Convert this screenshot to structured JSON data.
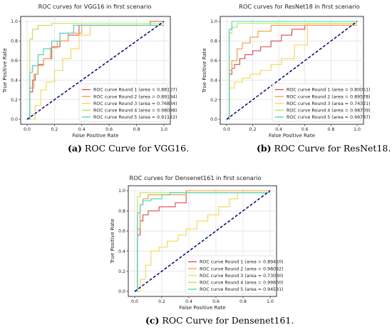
{
  "chart_data": [
    {
      "type": "line",
      "title": "ROC curves for VGG16 in first scenario",
      "xlabel": "False Positive Rate",
      "ylabel": "True Positive Rate",
      "xlim": [
        0.0,
        1.0
      ],
      "ylim": [
        0.0,
        1.0
      ],
      "xticks": [
        "0.0",
        "0.2",
        "0.4",
        "0.6",
        "0.8",
        "1.0"
      ],
      "yticks": [
        "0.0",
        "0.2",
        "0.4",
        "0.6",
        "0.8",
        "1.0"
      ],
      "grid": true,
      "legend_position": "lower-right",
      "diagonal": {
        "x": [
          0,
          1
        ],
        "y": [
          0,
          1
        ],
        "color": "#00008b",
        "style": "dashed"
      },
      "series": [
        {
          "name": "ROC curve Round 1 (area = 0.88107)",
          "color": "#e8474c",
          "x": [
            0,
            0.02,
            0.02,
            0.04,
            0.04,
            0.06,
            0.06,
            0.08,
            0.08,
            0.12,
            0.12,
            0.18,
            0.18,
            0.24,
            0.24,
            0.3,
            0.3,
            0.38,
            0.38,
            0.9,
            0.9,
            1.0
          ],
          "y": [
            0,
            0,
            0.28,
            0.28,
            0.4,
            0.4,
            0.46,
            0.46,
            0.56,
            0.56,
            0.62,
            0.62,
            0.74,
            0.74,
            0.8,
            0.8,
            0.86,
            0.86,
            0.96,
            0.96,
            1.0,
            1.0
          ]
        },
        {
          "name": "ROC curve Round 2 (area = 0.89194)",
          "color": "#f79a3a",
          "x": [
            0,
            0.02,
            0.02,
            0.05,
            0.05,
            0.08,
            0.08,
            0.12,
            0.12,
            0.17,
            0.17,
            0.22,
            0.22,
            0.3,
            0.3,
            0.4,
            0.4,
            1.0
          ],
          "y": [
            0,
            0,
            0.32,
            0.32,
            0.46,
            0.46,
            0.55,
            0.55,
            0.62,
            0.62,
            0.73,
            0.73,
            0.8,
            0.8,
            0.88,
            0.88,
            0.96,
            0.96
          ]
        },
        {
          "name": "ROC curve Round 3 (area = 0.76834)",
          "color": "#f7d84a",
          "x": [
            0,
            0.06,
            0.06,
            0.1,
            0.1,
            0.14,
            0.14,
            0.2,
            0.2,
            0.26,
            0.26,
            0.32,
            0.32,
            0.38,
            0.38,
            0.46,
            0.46,
            1.0
          ],
          "y": [
            0,
            0,
            0.14,
            0.14,
            0.3,
            0.3,
            0.38,
            0.38,
            0.5,
            0.5,
            0.62,
            0.62,
            0.72,
            0.72,
            0.86,
            0.86,
            0.96,
            0.96
          ]
        },
        {
          "name": "ROC curve Round 4 (area = 0.98098)",
          "color": "#b5e84a",
          "x": [
            0,
            0.02,
            0.02,
            0.04,
            0.04,
            0.08,
            0.08,
            0.18,
            0.18,
            1.0
          ],
          "y": [
            0,
            0,
            0.82,
            0.82,
            0.92,
            0.92,
            0.96,
            0.96,
            0.98,
            0.98
          ]
        },
        {
          "name": "ROC curve Round 5 (area = 0.91122)",
          "color": "#45d1b7",
          "x": [
            0,
            0.02,
            0.02,
            0.04,
            0.04,
            0.08,
            0.08,
            0.12,
            0.12,
            0.18,
            0.18,
            0.24,
            0.24,
            0.34,
            0.34,
            1.0
          ],
          "y": [
            0,
            0,
            0.48,
            0.48,
            0.55,
            0.55,
            0.66,
            0.66,
            0.72,
            0.72,
            0.8,
            0.8,
            0.88,
            0.88,
            0.96,
            0.96
          ]
        }
      ]
    },
    {
      "type": "line",
      "title": "ROC curves for ResNet18 in first scenario",
      "xlabel": "False Positive Rate",
      "ylabel": "True Positive Rate",
      "xlim": [
        0.0,
        1.0
      ],
      "ylim": [
        0.0,
        1.0
      ],
      "xticks": [
        "0.0",
        "0.2",
        "0.4",
        "0.6",
        "0.8",
        "1.0"
      ],
      "yticks": [
        "0.0",
        "0.2",
        "0.4",
        "0.6",
        "0.8",
        "1.0"
      ],
      "grid": true,
      "legend_position": "lower-right",
      "diagonal": {
        "x": [
          0,
          1
        ],
        "y": [
          0,
          1
        ],
        "color": "#00008b",
        "style": "dashed"
      },
      "series": [
        {
          "name": "ROC curve Round 1 (area = 0.80051)",
          "color": "#e8474c",
          "x": [
            0,
            0.02,
            0.02,
            0.04,
            0.04,
            0.06,
            0.06,
            0.1,
            0.1,
            0.14,
            0.14,
            0.2,
            0.2,
            0.26,
            0.26,
            0.34,
            0.34,
            0.42,
            0.42,
            0.5,
            0.5,
            0.6,
            0.6,
            1.0
          ],
          "y": [
            0,
            0,
            0.46,
            0.46,
            0.52,
            0.52,
            0.56,
            0.56,
            0.62,
            0.62,
            0.66,
            0.66,
            0.7,
            0.7,
            0.74,
            0.74,
            0.8,
            0.8,
            0.86,
            0.86,
            0.92,
            0.92,
            0.96,
            0.96
          ]
        },
        {
          "name": "ROC curve Round 2 (area = 0.89578)",
          "color": "#f79a3a",
          "x": [
            0,
            0.02,
            0.02,
            0.04,
            0.04,
            0.08,
            0.08,
            0.12,
            0.12,
            0.18,
            0.18,
            0.24,
            0.24,
            0.34,
            0.34,
            1.0
          ],
          "y": [
            0,
            0,
            0.5,
            0.5,
            0.6,
            0.6,
            0.72,
            0.72,
            0.78,
            0.78,
            0.84,
            0.84,
            0.9,
            0.9,
            0.96,
            0.96
          ]
        },
        {
          "name": "ROC curve Round 3 (area = 0.74321)",
          "color": "#f7d84a",
          "x": [
            0,
            0.02,
            0.02,
            0.06,
            0.06,
            0.12,
            0.12,
            0.18,
            0.18,
            0.26,
            0.26,
            0.34,
            0.34,
            0.42,
            0.42,
            0.52,
            0.52,
            0.62,
            0.62,
            1.0
          ],
          "y": [
            0,
            0,
            0.32,
            0.32,
            0.38,
            0.38,
            0.42,
            0.42,
            0.46,
            0.46,
            0.5,
            0.5,
            0.56,
            0.56,
            0.62,
            0.62,
            0.76,
            0.76,
            0.98,
            0.98
          ]
        },
        {
          "name": "ROC curve Round 4 (area = 0.98709)",
          "color": "#b5e84a",
          "x": [
            0,
            0.02,
            0.02,
            0.04,
            0.04,
            0.08,
            0.08,
            1.0
          ],
          "y": [
            0,
            0,
            0.88,
            0.88,
            0.94,
            0.94,
            0.98,
            0.98
          ]
        },
        {
          "name": "ROC curve Round 5 (area = 0.99787)",
          "color": "#45d1b7",
          "x": [
            0,
            0.02,
            0.02,
            0.04,
            0.04,
            1.0
          ],
          "y": [
            0,
            0,
            0.92,
            0.92,
            1.0,
            1.0
          ]
        }
      ]
    },
    {
      "type": "line",
      "title": "ROC curves for Densenet161 in first scenario",
      "xlabel": "False Positive Rate",
      "ylabel": "True Positive Rate",
      "xlim": [
        0.0,
        1.0
      ],
      "ylim": [
        0.0,
        1.0
      ],
      "xticks": [
        "0.0",
        "0.2",
        "0.4",
        "0.6",
        "0.8",
        "1.0"
      ],
      "yticks": [
        "0.0",
        "0.2",
        "0.4",
        "0.6",
        "0.8",
        "1.0"
      ],
      "grid": true,
      "legend_position": "lower-right",
      "diagonal": {
        "x": [
          0,
          1
        ],
        "y": [
          0,
          1
        ],
        "color": "#00008b",
        "style": "dashed"
      },
      "series": [
        {
          "name": "ROC curve Round 1 (area = 0.89450)",
          "color": "#e8474c",
          "x": [
            0,
            0.02,
            0.02,
            0.04,
            0.04,
            0.06,
            0.06,
            0.1,
            0.1,
            0.18,
            0.18,
            0.3,
            0.3,
            0.38,
            0.38,
            1.0
          ],
          "y": [
            0,
            0,
            0.56,
            0.56,
            0.7,
            0.7,
            0.76,
            0.76,
            0.8,
            0.8,
            0.84,
            0.84,
            0.88,
            0.88,
            1.0,
            1.0
          ]
        },
        {
          "name": "ROC curve Round 2 (area = 0.98082)",
          "color": "#f79a3a",
          "x": [
            0,
            0.02,
            0.02,
            0.04,
            0.04,
            0.06,
            0.06,
            0.1,
            0.1,
            0.38,
            0.38,
            1.0
          ],
          "y": [
            0,
            0,
            0.62,
            0.62,
            0.86,
            0.86,
            0.92,
            0.92,
            0.96,
            0.96,
            1.0,
            1.0
          ]
        },
        {
          "name": "ROC curve Round 3 (area = 0.73030)",
          "color": "#f7d84a",
          "x": [
            0,
            0.04,
            0.04,
            0.08,
            0.08,
            0.12,
            0.12,
            0.18,
            0.18,
            0.24,
            0.24,
            0.32,
            0.32,
            0.38,
            0.38,
            0.46,
            0.46,
            0.54,
            0.54,
            0.62,
            0.62,
            0.7,
            0.7,
            0.76,
            0.76,
            1.0
          ],
          "y": [
            0,
            0,
            0.12,
            0.12,
            0.26,
            0.26,
            0.4,
            0.4,
            0.44,
            0.44,
            0.5,
            0.5,
            0.56,
            0.56,
            0.62,
            0.62,
            0.7,
            0.7,
            0.76,
            0.76,
            0.84,
            0.84,
            0.92,
            0.92,
            0.98,
            0.98
          ]
        },
        {
          "name": "ROC curve Round 4 (area = 0.99660)",
          "color": "#b5e84a",
          "x": [
            0,
            0.02,
            0.02,
            0.04,
            0.04,
            1.0
          ],
          "y": [
            0,
            0,
            0.94,
            0.94,
            0.98,
            0.98
          ]
        },
        {
          "name": "ROC curve Round 5 (area = 0.94531)",
          "color": "#45d1b7",
          "x": [
            0,
            0.02,
            0.02,
            0.04,
            0.04,
            0.06,
            0.06,
            0.12,
            0.12,
            0.2,
            0.2,
            0.26,
            0.26,
            1.0
          ],
          "y": [
            0,
            0,
            0.78,
            0.78,
            0.86,
            0.86,
            0.9,
            0.9,
            0.92,
            0.92,
            0.96,
            0.96,
            0.98,
            0.98
          ]
        }
      ]
    }
  ],
  "captions": [
    {
      "label": "(a)",
      "text": " ROC Curve for VGG16."
    },
    {
      "label": "(b)",
      "text": " ROC Curve for ResNet18."
    },
    {
      "label": "(c)",
      "text": " ROC Curve for Densenet161."
    }
  ]
}
